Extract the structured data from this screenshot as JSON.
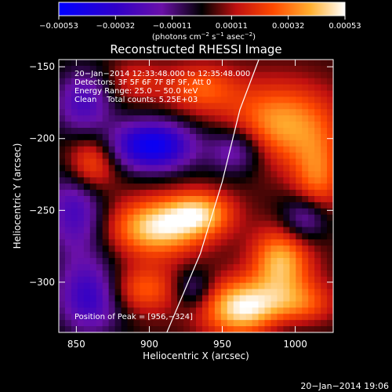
{
  "chart_data": {
    "type": "heatmap",
    "title": "Reconstructed RHESSI Image",
    "xlabel": "Heliocentric X (arcsec)",
    "ylabel": "Heliocentric Y (arcsec)",
    "xlim": [
      838,
      1026
    ],
    "ylim": [
      -335,
      -145
    ],
    "x_ticks": [
      850,
      900,
      950,
      1000
    ],
    "y_ticks": [
      -150,
      -200,
      -250,
      -300
    ],
    "x_tick_labels": [
      "850",
      "900",
      "950",
      "1000"
    ],
    "y_tick_labels": [
      "−150",
      "−200",
      "−250",
      "−300"
    ],
    "colorbar": {
      "min": -0.00053,
      "max": 0.00053,
      "ticks": [
        -0.00053,
        -0.00032,
        -0.00011,
        0.00011,
        0.00032,
        0.00053
      ],
      "tick_labels": [
        "−0.00053",
        "−0.00032",
        "−0.00011",
        "0.00011",
        "0.00032",
        "0.00053"
      ],
      "unit_prefix": "(photons cm",
      "unit_exp1": "−2",
      "unit_mid": " s",
      "unit_exp2": "−1",
      "unit_mid2": " asec",
      "unit_exp3": "−2",
      "unit_suffix": ")"
    },
    "annotations": [
      "20−Jan−2014 12:33:48.000 to 12:35:48.000",
      "Detectors: 3F 5F 6F 7F 8F 9F, Att 0",
      "Energy Range: 25.0 − 50.0 keV",
      "Clean    Total counts: 5.25E+03"
    ],
    "peak_label": "Position of Peak = [956,−324]",
    "peak": [
      956,
      -324
    ],
    "limb_curve": [
      [
        912,
        -335
      ],
      [
        935,
        -280
      ],
      [
        950,
        -230
      ],
      [
        962,
        -180
      ],
      [
        975,
        -145
      ]
    ],
    "sources": [
      {
        "x": 905,
        "y": -262,
        "amp": 0.00045,
        "sx": 22,
        "sy": 14
      },
      {
        "x": 935,
        "y": -252,
        "amp": 0.00035,
        "sx": 16,
        "sy": 11
      },
      {
        "x": 895,
        "y": -305,
        "amp": 0.00026,
        "sx": 18,
        "sy": 12
      },
      {
        "x": 965,
        "y": -318,
        "amp": 0.0005,
        "sx": 20,
        "sy": 14
      },
      {
        "x": 1005,
        "y": -320,
        "amp": 0.0003,
        "sx": 16,
        "sy": 14
      },
      {
        "x": 990,
        "y": -285,
        "amp": 0.00038,
        "sx": 14,
        "sy": 16
      },
      {
        "x": 990,
        "y": -190,
        "amp": 0.00036,
        "sx": 26,
        "sy": 20
      },
      {
        "x": 1015,
        "y": -230,
        "amp": 0.00028,
        "sx": 12,
        "sy": 22
      },
      {
        "x": 860,
        "y": -218,
        "amp": 0.0003,
        "sx": 12,
        "sy": 14
      },
      {
        "x": 935,
        "y": -165,
        "amp": 0.00024,
        "sx": 18,
        "sy": 12
      },
      {
        "x": 890,
        "y": -160,
        "amp": 0.00015,
        "sx": 14,
        "sy": 10
      },
      {
        "x": 850,
        "y": -250,
        "amp": -0.0003,
        "sx": 14,
        "sy": 22
      },
      {
        "x": 902,
        "y": -205,
        "amp": -0.00052,
        "sx": 20,
        "sy": 12
      },
      {
        "x": 855,
        "y": -175,
        "amp": -0.00028,
        "sx": 14,
        "sy": 16
      },
      {
        "x": 960,
        "y": -208,
        "amp": -0.00028,
        "sx": 14,
        "sy": 12
      },
      {
        "x": 1008,
        "y": -255,
        "amp": -0.0003,
        "sx": 12,
        "sy": 12
      },
      {
        "x": 1000,
        "y": -330,
        "amp": -0.00022,
        "sx": 18,
        "sy": 10
      },
      {
        "x": 860,
        "y": -310,
        "amp": -0.00035,
        "sx": 16,
        "sy": 18
      },
      {
        "x": 930,
        "y": -305,
        "amp": -0.0002,
        "sx": 10,
        "sy": 10
      }
    ]
  },
  "footer": {
    "timestamp": "20−Jan−2014 19:06"
  }
}
